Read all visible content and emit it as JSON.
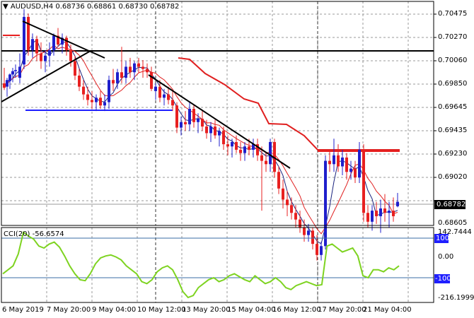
{
  "header": {
    "arrow": "▼",
    "symbol": "AUDUSD,H4",
    "o": "0.68736",
    "h": "0.68861",
    "l": "0.68730",
    "c": "0.68782"
  },
  "price_axis": {
    "labels": [
      "0.70475",
      "0.70270",
      "0.70060",
      "0.69850",
      "0.69645",
      "0.69435",
      "0.69230",
      "0.69020",
      "0.68605"
    ],
    "current_price": "0.68782"
  },
  "indicator": {
    "title": "CCI(20) -56.6574",
    "labels": [
      "142.7444",
      "100",
      "0.00",
      "-100",
      "-216.1999"
    ]
  },
  "time_axis": {
    "labels": [
      "6 May 2019",
      "7 May 20:00",
      "9 May 04:00",
      "10 May 12:00",
      "13 May 20:00",
      "15 May 04:00",
      "16 May 12:00",
      "17 May 20:00",
      "21 May 04:00"
    ]
  },
  "colors": {
    "bull": "#1f1fcc",
    "bear": "#e82020",
    "ma_red": "#e02020",
    "ma_navy": "#1a237e",
    "cci": "#7ed321",
    "cci_levels": "#3a6ea5",
    "trend": "#000000",
    "support": "#1f1fff"
  }
}
